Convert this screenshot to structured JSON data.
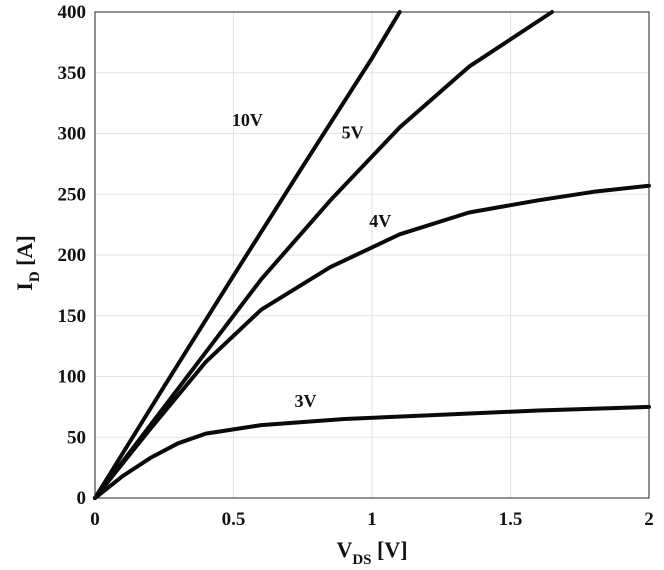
{
  "chart_data": {
    "type": "line",
    "xlabel": {
      "main": "V",
      "sub": "DS",
      "unit": " [V]"
    },
    "ylabel": {
      "main": "I",
      "sub": "D",
      "unit": " [A]"
    },
    "xlim": [
      0,
      2
    ],
    "ylim": [
      0,
      400
    ],
    "xticks": [
      0,
      0.5,
      1,
      1.5,
      2
    ],
    "xtick_labels": [
      "0",
      "0.5",
      "1",
      "1.5",
      "2"
    ],
    "yticks": [
      0,
      50,
      100,
      150,
      200,
      250,
      300,
      350,
      400
    ],
    "ytick_labels": [
      "0",
      "50",
      "100",
      "150",
      "200",
      "250",
      "300",
      "350",
      "400"
    ],
    "grid": true,
    "series": [
      {
        "name": "10V",
        "x": [
          0,
          0.25,
          0.5,
          0.75,
          1.0,
          1.1
        ],
        "y": [
          0,
          92,
          183,
          273,
          362,
          400
        ]
      },
      {
        "name": "5V",
        "x": [
          0,
          0.2,
          0.4,
          0.6,
          0.85,
          1.1,
          1.35,
          1.65
        ],
        "y": [
          0,
          60,
          120,
          180,
          245,
          305,
          355,
          400
        ]
      },
      {
        "name": "4V",
        "x": [
          0,
          0.2,
          0.4,
          0.6,
          0.85,
          1.1,
          1.35,
          1.6,
          1.8,
          2.0
        ],
        "y": [
          0,
          57,
          112,
          155,
          190,
          217,
          235,
          245,
          252,
          257
        ]
      },
      {
        "name": "3V",
        "x": [
          0,
          0.1,
          0.2,
          0.3,
          0.4,
          0.6,
          0.9,
          1.2,
          1.6,
          2.0
        ],
        "y": [
          0,
          18,
          33,
          45,
          53,
          60,
          65,
          68,
          72,
          75
        ]
      }
    ],
    "annotations": [
      {
        "text": "10V",
        "x": 0.55,
        "y": 306
      },
      {
        "text": "5V",
        "x": 0.93,
        "y": 296
      },
      {
        "text": "4V",
        "x": 1.03,
        "y": 223
      },
      {
        "text": "3V",
        "x": 0.76,
        "y": 75
      }
    ]
  }
}
